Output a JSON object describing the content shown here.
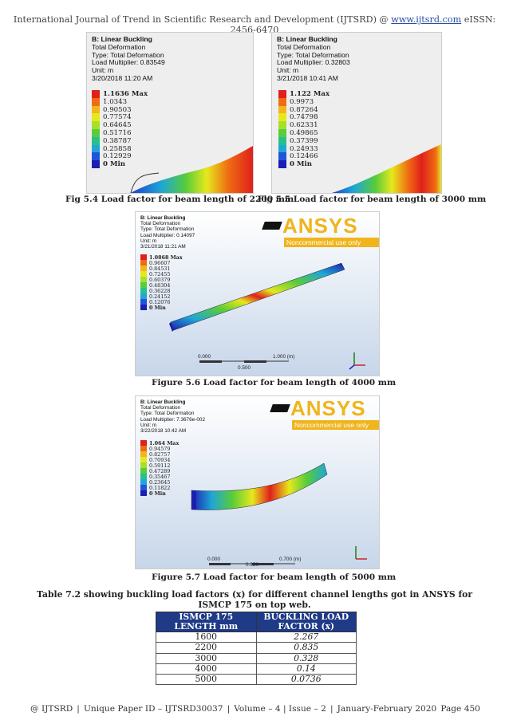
{
  "header": {
    "text": "International Journal of Trend in Scientific Research and Development (IJTSRD) @ ",
    "link": "www.ijtsrd.com",
    "issn": " eISSN: 2456-6470"
  },
  "fig54": {
    "title": "B: Linear Buckling",
    "lines": [
      "Total Deformation",
      "Type: Total Deformation",
      "Load Multiplier: 0.83549",
      "Unit: m",
      "3/20/2018 11:20 AM"
    ],
    "scale": [
      "1.1636 Max",
      "1.0343",
      "0.90503",
      "0.77574",
      "0.64645",
      "0.51716",
      "0.38787",
      "0.25858",
      "0.12929",
      "0 Min"
    ],
    "caption": "Fig 5.4 Load factor for beam length of 2200 mm"
  },
  "fig55": {
    "title": "B: Linear Buckling",
    "lines": [
      "Total Deformation",
      "Type: Total Deformation",
      "Load Multiplier: 0.32803",
      "Unit: m",
      "3/21/2018 10:41 AM"
    ],
    "scale": [
      "1.122 Max",
      "0.9973",
      "0.87264",
      "0.74798",
      "0.62331",
      "0.49865",
      "0.37399",
      "0.24933",
      "0.12466",
      "0 Min"
    ],
    "caption": "Fig 5.5 Load factor for beam length of 3000 mm"
  },
  "fig56": {
    "title": "B: Linear Buckling",
    "lines": [
      "Total Deformation",
      "Type: Total Deformation",
      "Load Multiplier: 0.14097",
      "Unit: m",
      "3/21/2018 11:21 AM"
    ],
    "scale": [
      "1.0868 Max",
      "0.96607",
      "0.84531",
      "0.72455",
      "0.60379",
      "0.48304",
      "0.36228",
      "0.24152",
      "0.12076",
      "0 Min"
    ],
    "ruler": [
      "0.000",
      "1.000 (m)",
      "0.500"
    ],
    "caption": "Figure 5.6 Load factor for beam length of 4000 mm"
  },
  "fig57": {
    "title": "B: Linear Buckling",
    "lines": [
      "Total Deformation",
      "Type: Total Deformation",
      "Load Multiplier: 7.3676e-002",
      "Unit: m",
      "3/22/2018 10:42 AM"
    ],
    "scale": [
      "1.064 Max",
      "0.94579",
      "0.82757",
      "0.70934",
      "0.59112",
      "0.47289",
      "0.35467",
      "0.23645",
      "0.11822",
      "0 Min"
    ],
    "ruler": [
      "0.000",
      "0.700 (m)",
      "0.350"
    ],
    "caption": "Figure 5.7 Load factor for beam length of 5000 mm"
  },
  "ansys": {
    "brand": "ANSYS",
    "sub": "Noncommercial use only"
  },
  "colors": [
    "#e0201b",
    "#ef6c13",
    "#f2b51d",
    "#e6e81c",
    "#a7e028",
    "#58cc3a",
    "#27c08c",
    "#1fa6d5",
    "#2254d8",
    "#1b1fb0"
  ],
  "table": {
    "title": "Table 7.2 showing buckling load factors (x) for different channel lengths got in ANSYS for ISMCP 175 on top web.",
    "headers": [
      "ISMCP 175 LENGTH mm",
      "BUCKLING LOAD FACTOR (x)"
    ],
    "rows": [
      [
        "1600",
        "2.267"
      ],
      [
        "2200",
        "0.835"
      ],
      [
        "3000",
        "0.328"
      ],
      [
        "4000",
        "0.14"
      ],
      [
        "5000",
        "0.0736"
      ]
    ]
  },
  "footer": [
    "@ IJTSRD",
    "|",
    "Unique Paper ID – IJTSRD30037",
    "|",
    "Volume – 4 | Issue – 2",
    "|",
    "January-February 2020",
    "Page 450"
  ]
}
